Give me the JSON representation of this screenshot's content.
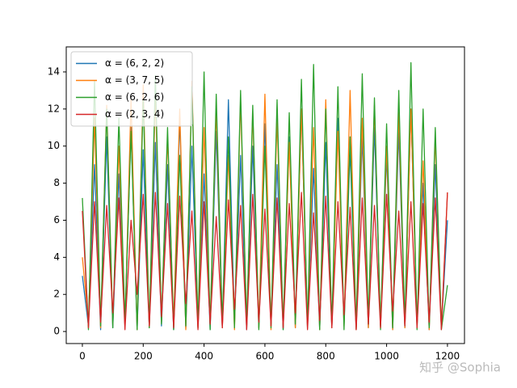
{
  "chart_data": {
    "type": "line",
    "x": [
      0,
      20,
      40,
      60,
      80,
      100,
      120,
      140,
      160,
      180,
      200,
      220,
      240,
      260,
      280,
      300,
      320,
      340,
      360,
      380,
      400,
      420,
      440,
      460,
      480,
      500,
      520,
      540,
      560,
      580,
      600,
      620,
      640,
      660,
      680,
      700,
      720,
      740,
      760,
      780,
      800,
      820,
      840,
      860,
      880,
      900,
      920,
      940,
      960,
      980,
      1000,
      1020,
      1040,
      1060,
      1080,
      1100,
      1120,
      1140,
      1160,
      1180,
      1200
    ],
    "series": [
      {
        "name": "α = (6, 2, 2)",
        "color": "#1f77b4",
        "values": [
          3.0,
          0.3,
          9.0,
          0.1,
          10.5,
          0.2,
          8.5,
          0.4,
          11.0,
          0.1,
          9.8,
          0.2,
          10.2,
          0.3,
          9.0,
          0.1,
          11.5,
          0.2,
          10.0,
          0.3,
          8.5,
          0.1,
          10.8,
          0.2,
          12.5,
          0.4,
          9.5,
          0.1,
          10.0,
          0.2,
          11.2,
          0.3,
          9.0,
          0.1,
          10.5,
          0.2,
          12.0,
          0.3,
          8.8,
          0.1,
          10.2,
          0.2,
          11.5,
          0.4,
          9.8,
          0.1,
          10.5,
          0.2,
          11.0,
          0.3,
          9.5,
          0.1,
          10.8,
          0.2,
          12.0,
          0.3,
          8.0,
          0.1,
          9.0,
          0.2,
          6.0
        ]
      },
      {
        "name": "α = (3, 7, 5)",
        "color": "#ff7f0e",
        "values": [
          4.0,
          0.5,
          11.5,
          0.2,
          12.2,
          0.4,
          10.0,
          0.3,
          12.5,
          0.1,
          13.3,
          0.2,
          12.8,
          0.5,
          10.5,
          0.3,
          12.0,
          0.1,
          13.5,
          0.2,
          11.0,
          0.4,
          12.0,
          0.2,
          9.5,
          0.1,
          12.5,
          0.3,
          11.8,
          0.2,
          12.8,
          0.1,
          11.5,
          0.3,
          10.2,
          0.2,
          12.0,
          0.4,
          11.0,
          0.1,
          12.5,
          0.2,
          10.8,
          0.3,
          13.0,
          0.1,
          11.5,
          0.2,
          12.2,
          0.3,
          10.0,
          0.1,
          11.8,
          0.2,
          12.0,
          0.4,
          9.2,
          0.1,
          10.5,
          0.2,
          7.5
        ]
      },
      {
        "name": "α = (6, 2, 6)",
        "color": "#2ca02c",
        "values": [
          7.2,
          0.1,
          13.5,
          0.3,
          12.0,
          0.2,
          11.5,
          0.5,
          10.8,
          0.1,
          12.5,
          0.2,
          13.8,
          0.4,
          11.0,
          0.1,
          9.5,
          0.3,
          13.2,
          0.2,
          14.0,
          0.1,
          12.8,
          0.5,
          10.5,
          0.2,
          13.0,
          0.3,
          12.2,
          0.1,
          10.0,
          0.2,
          12.5,
          0.1,
          11.8,
          0.4,
          13.6,
          0.2,
          14.4,
          0.1,
          12.0,
          0.3,
          13.2,
          0.1,
          10.5,
          0.2,
          13.9,
          0.4,
          12.6,
          0.1,
          11.2,
          0.2,
          13.0,
          0.3,
          14.5,
          0.1,
          12.0,
          0.2,
          11.0,
          0.1,
          2.5
        ]
      },
      {
        "name": "α = (2, 3, 4)",
        "color": "#d62728",
        "values": [
          6.5,
          0.2,
          7.0,
          0.5,
          6.8,
          1.0,
          7.2,
          0.1,
          6.0,
          2.0,
          7.4,
          0.3,
          7.5,
          0.8,
          6.9,
          0.2,
          7.3,
          1.5,
          6.5,
          0.1,
          7.0,
          0.4,
          6.2,
          0.2,
          7.1,
          1.2,
          6.8,
          0.1,
          7.4,
          0.5,
          6.6,
          0.3,
          7.2,
          0.2,
          6.9,
          1.0,
          7.5,
          0.1,
          6.4,
          0.6,
          7.3,
          0.2,
          7.0,
          0.9,
          6.7,
          0.1,
          7.2,
          0.4,
          6.8,
          0.2,
          7.4,
          1.1,
          6.5,
          0.3,
          7.0,
          0.2,
          6.9,
          0.5,
          7.2,
          0.1,
          7.5
        ]
      }
    ],
    "xlim": [
      -53,
      1256
    ],
    "ylim": [
      -0.65,
      15.35
    ],
    "xticks": [
      0,
      200,
      400,
      600,
      800,
      1000,
      1200
    ],
    "yticks": [
      0,
      2,
      4,
      6,
      8,
      10,
      12,
      14
    ],
    "grid": false,
    "legend": "upper left"
  },
  "watermark": "知乎 @Sophia"
}
